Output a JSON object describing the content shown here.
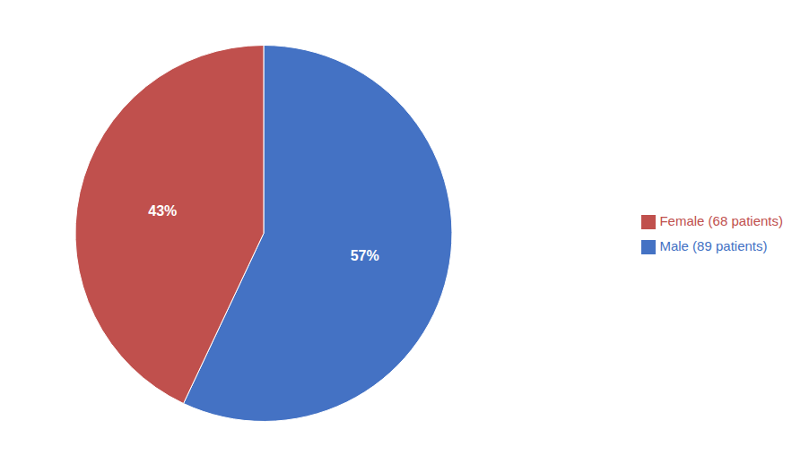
{
  "chart_data": {
    "type": "pie",
    "categories": [
      "Male (89 patients)",
      "Female (68 patients)"
    ],
    "values": [
      57,
      43
    ],
    "value_labels": [
      "57%",
      "43%"
    ],
    "colors": [
      "#4472C4",
      "#C0504D"
    ],
    "data_labels": true,
    "legend": "right"
  }
}
